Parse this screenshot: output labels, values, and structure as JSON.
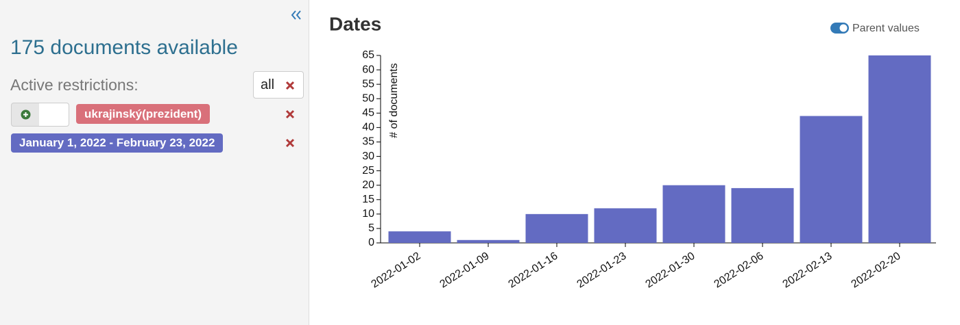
{
  "sidebar": {
    "count": "175 documents available",
    "restrictions_label": "Active restrictions:",
    "all_button": "all",
    "restrictions": [
      "ukrajinský(prezident)",
      "January 1, 2022 - February 23, 2022"
    ]
  },
  "chart_data": {
    "type": "bar",
    "title": "Dates",
    "toggle_label": "Parent values",
    "ylabel": "# of documents",
    "categories": [
      "2022-01-02",
      "2022-01-09",
      "2022-01-16",
      "2022-01-23",
      "2022-01-30",
      "2022-02-06",
      "2022-02-13",
      "2022-02-20"
    ],
    "values": [
      4,
      1,
      10,
      12,
      20,
      19,
      44,
      65
    ],
    "color": "#636bc2",
    "ylim": [
      0,
      65
    ],
    "yticks": [
      0,
      5,
      10,
      15,
      20,
      25,
      30,
      35,
      40,
      45,
      50,
      55,
      60,
      65
    ],
    "grid": false
  }
}
